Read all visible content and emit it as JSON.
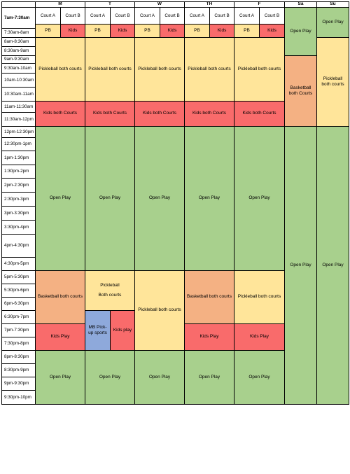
{
  "days": [
    "M",
    "T",
    "W",
    "TH",
    "F",
    "Sa",
    "Su"
  ],
  "courts": {
    "a": "Court A",
    "b": "Court B"
  },
  "times": [
    "7am-7:30am",
    "7:30am-8am",
    "8am-8:30am",
    "8:30am-9am",
    "9am-9:30am",
    "9:30am-10am",
    "10am-10:30am",
    "10:30am-11am",
    "11am-11:30am",
    "11:30am-12pm",
    "12pm-12:30pm",
    "12:30pm-1pm",
    "1pm-1:30pm",
    "1:30pm-2pm",
    "2pm-2:30pm",
    "2:30pm-3pm",
    "3pm-3:30pm",
    "3:30pm-4pm",
    "4pm-4:30pm",
    "4:30pm-5pm",
    "5pm-5:30pm",
    "5:30pm-6pm",
    "6pm-6:30pm",
    "6:30pm-7pm",
    "7pm-7:30pm",
    "7:30pm-8pm",
    "8pm-8:30pm",
    "8:30pm-9pm",
    "9pm-9:30pm",
    "9:30pm-10pm"
  ],
  "labels": {
    "pb": "PB",
    "kids": "Kids",
    "open_play": "Open Play",
    "pickleball_both": "Pickleball both courts",
    "kids_both": "Kids both Courts",
    "basketball_both": "Basketball both courts",
    "basketball_both_weekend": "Basketball both Courts",
    "pickleball_line1": "Pickleball",
    "pickleball_line2": "Both courts",
    "kids_play": "Kids Play",
    "mb_pickup": "MB Pick- up sports",
    "kids_play_short": "Kids play",
    "pickleball_both_weekend": "Pickleball both courts"
  },
  "colors": {
    "pickleball": "#ffe59a",
    "kids": "#f96b6b",
    "open_play": "#a8d08d",
    "basketball": "#f4b183",
    "mb_pickup": "#8ea9db"
  }
}
